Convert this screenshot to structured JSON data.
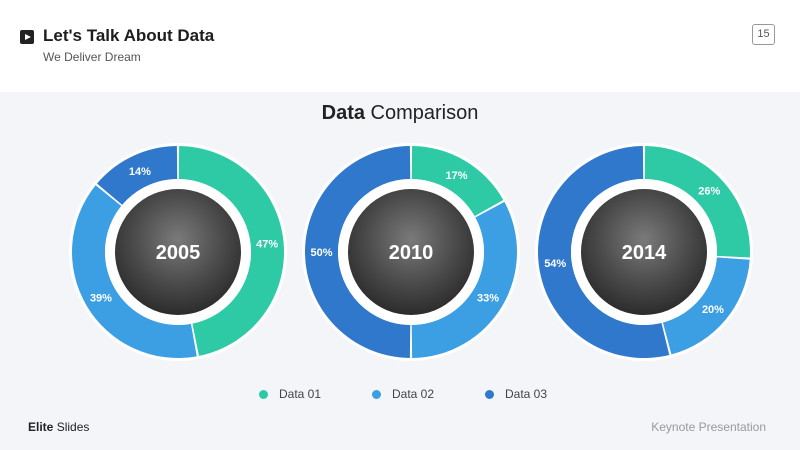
{
  "header": {
    "title": "Let's Talk About Data",
    "subtitle": "We Deliver Dream",
    "page_number": "15"
  },
  "section": {
    "title_bold": "Data",
    "title_rest": "Comparison"
  },
  "legend": [
    {
      "label": "Data 01",
      "color": "#2ecaa6"
    },
    {
      "label": "Data 02",
      "color": "#3d9fe3"
    },
    {
      "label": "Data 03",
      "color": "#2f78cc"
    }
  ],
  "footer": {
    "brand_bold": "Elite",
    "brand_rest": "Slides",
    "right_text": "Keynote Presentation"
  },
  "chart_data": [
    {
      "type": "pie",
      "title": "2005",
      "categories": [
        "Data 01",
        "Data 02",
        "Data 03"
      ],
      "values": [
        47,
        39,
        14
      ],
      "labels": [
        "47%",
        "39%",
        "14%"
      ]
    },
    {
      "type": "pie",
      "title": "2010",
      "categories": [
        "Data 01",
        "Data 02",
        "Data 03"
      ],
      "values": [
        17,
        33,
        50
      ],
      "labels": [
        "17%",
        "33%",
        "50%"
      ]
    },
    {
      "type": "pie",
      "title": "2014",
      "categories": [
        "Data 01",
        "Data 02",
        "Data 03"
      ],
      "values": [
        26,
        20,
        54
      ],
      "labels": [
        "26%",
        "20%",
        "54%"
      ]
    }
  ]
}
